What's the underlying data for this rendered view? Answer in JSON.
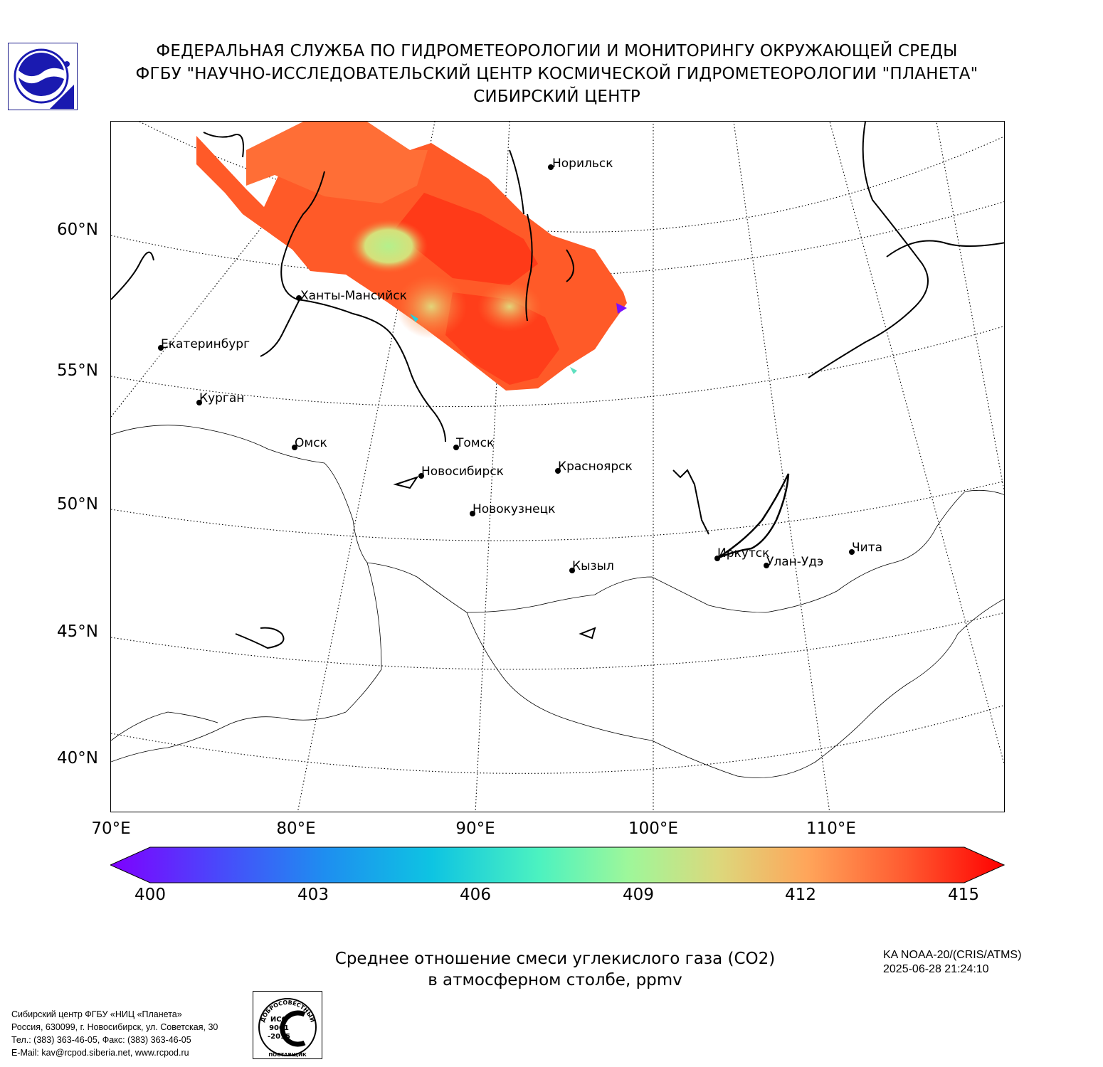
{
  "header": {
    "line1": "ФЕДЕРАЛЬНАЯ СЛУЖБА ПО ГИДРОМЕТЕОРОЛОГИИ И МОНИТОРИНГУ ОКРУЖАЮЩЕЙ СРЕДЫ",
    "line2": "ФГБУ \"НАУЧНО-ИССЛЕДОВАТЕЛЬСКИЙ ЦЕНТР КОСМИЧЕСКОЙ ГИДРОМЕТЕОРОЛОГИИ \"ПЛАНЕТА\"",
    "line3": "СИБИРСКИЙ ЦЕНТР"
  },
  "map": {
    "lat_labels": [
      "60°N",
      "55°N",
      "50°N",
      "45°N",
      "40°N"
    ],
    "lon_labels": [
      "70°E",
      "80°E",
      "90°E",
      "100°E",
      "110°E"
    ],
    "cities": [
      {
        "name": "Норильск",
        "lon": 88.2,
        "lat": 69.3
      },
      {
        "name": "Ханты-Мансийск",
        "lon": 69.0,
        "lat": 61.0
      },
      {
        "name": "Екатеринбург",
        "lon": 60.6,
        "lat": 56.8
      },
      {
        "name": "Курган",
        "lon": 65.3,
        "lat": 55.4
      },
      {
        "name": "Омск",
        "lon": 73.4,
        "lat": 55.0
      },
      {
        "name": "Томск",
        "lon": 84.9,
        "lat": 56.5
      },
      {
        "name": "Новосибирск",
        "lon": 82.9,
        "lat": 55.0
      },
      {
        "name": "Красноярск",
        "lon": 92.9,
        "lat": 56.0
      },
      {
        "name": "Новокузнецк",
        "lon": 87.1,
        "lat": 53.8
      },
      {
        "name": "Кызыл",
        "lon": 94.4,
        "lat": 51.7
      },
      {
        "name": "Иркутск",
        "lon": 104.3,
        "lat": 52.3
      },
      {
        "name": "Улан-Удэ",
        "lon": 107.6,
        "lat": 51.8
      },
      {
        "name": "Чита",
        "lon": 113.5,
        "lat": 52.0
      }
    ],
    "overlay_colors": {
      "high": "#ff3a14",
      "mid": "#ff6a30",
      "low": "#b4f08c"
    }
  },
  "colorbar": {
    "ticks": [
      "400",
      "403",
      "406",
      "409",
      "412",
      "415"
    ],
    "min": 400,
    "max": 415,
    "colormap": "rainbow"
  },
  "caption": {
    "line1": "Среднее отношение смеси углекислого газа (CO2)",
    "line2": "в атмосферном столбе, ppmv"
  },
  "satellite": {
    "name": "KA NOAA-20/(CRIS/ATMS)",
    "datetime": "2025-06-28 21:24:10"
  },
  "contact": {
    "line1": "Сибирский центр ФГБУ «НИЦ «Планета»",
    "line2": "Россия, 630099, г. Новосибирск, ул. Советская, 30",
    "line3": "Тел.: (383) 363-46-05, Факс: (383) 363-46-05",
    "line4": "E-Mail: kav@rcpod.siberia.net, www.rcpod.ru"
  },
  "iso_badge": {
    "top_text": "ДОБРОСОВЕСТНЫЙ",
    "center_text1": "ИСО",
    "center_text2": "9001",
    "center_text3": "-2015",
    "bottom_text": "ПОСТАВЩИК"
  }
}
